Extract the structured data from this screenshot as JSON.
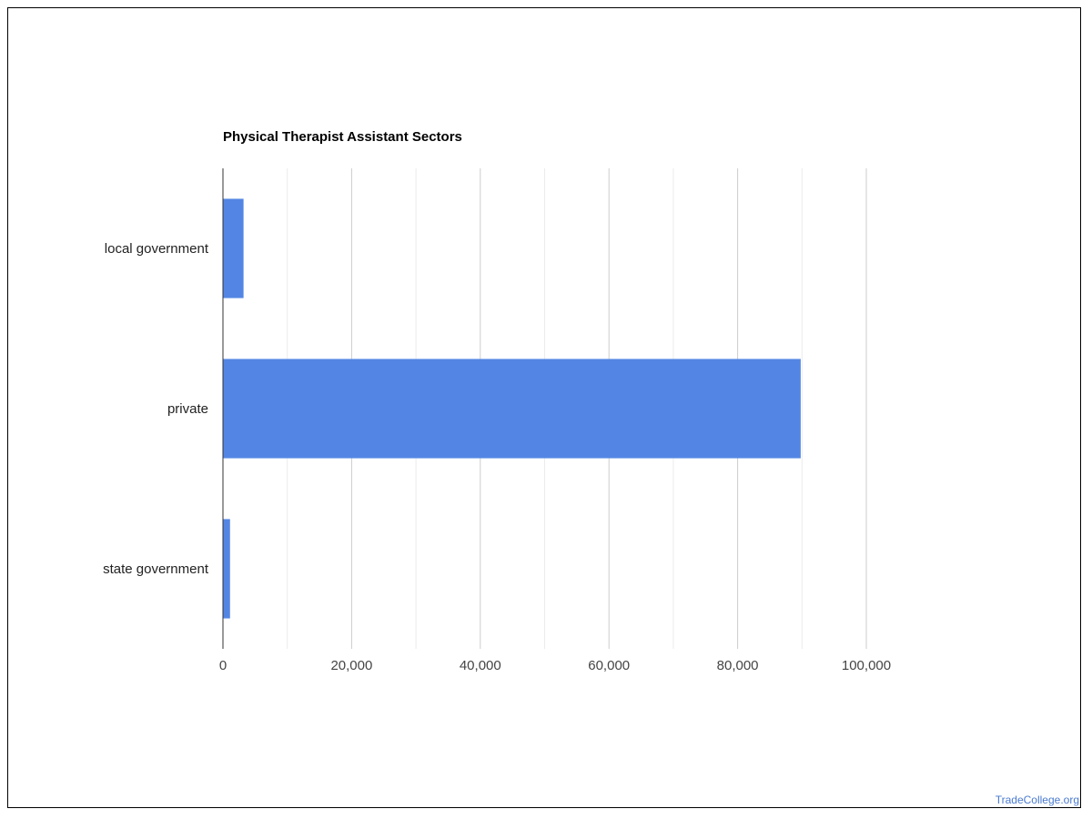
{
  "chart_data": {
    "type": "bar",
    "orientation": "horizontal",
    "title": "Physical Therapist Assistant Sectors",
    "categories": [
      "local government",
      "private",
      "state government"
    ],
    "values": [
      3200,
      89800,
      1100
    ],
    "xlim": [
      0,
      100000
    ],
    "x_ticks": [
      "0",
      "20,000",
      "40,000",
      "60,000",
      "80,000",
      "100,000"
    ],
    "grid": true,
    "legend": "none",
    "bar_color": "#5386e4",
    "xlabel": "",
    "ylabel": ""
  },
  "watermark": "TradeCollege.org"
}
